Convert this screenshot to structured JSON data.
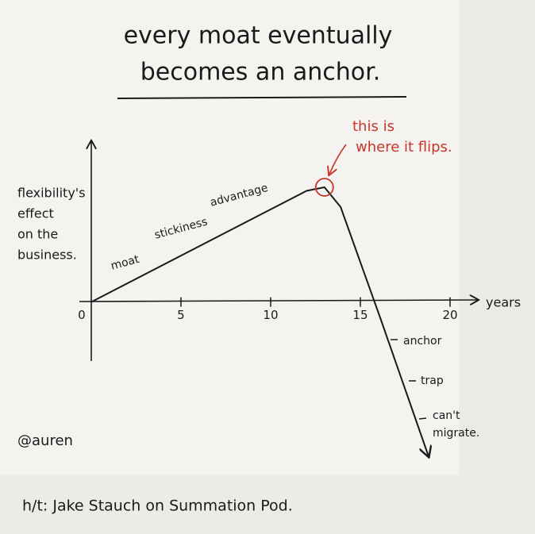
{
  "chart_data": {
    "type": "line",
    "title": [
      "every moat eventually",
      "becomes an anchor."
    ],
    "y_label": [
      "flexibility's",
      "effect",
      "on the",
      "business."
    ],
    "x_label": "years",
    "x": [
      0,
      12,
      13,
      13.9,
      16.15,
      18.8
    ],
    "series": [
      {
        "color": "#1a1a1a",
        "values": [
          0,
          6.2,
          6.4,
          5.3,
          -1,
          -8.6
        ]
      }
    ],
    "xlim": [
      -0.66,
      21.46
    ],
    "ylim": [
      -8.6,
      9.1
    ],
    "xticks": [
      0,
      5,
      10,
      15,
      20
    ],
    "annotations": [
      "moat",
      "stickiness",
      "advantage",
      "anchor",
      "trap",
      "can't",
      "migrate."
    ],
    "callout": {
      "color": "#c8352b",
      "lines": [
        "this is",
        "where it flips."
      ]
    },
    "footer": [
      "@auren",
      "h/t: Jake Stauch on Summation Pod."
    ]
  }
}
